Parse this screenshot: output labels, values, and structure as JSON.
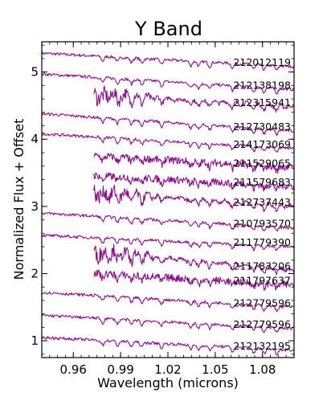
{
  "chart_data": {
    "type": "line",
    "title": "Y Band",
    "xlabel": "Wavelength (microns)",
    "ylabel": "Normalized Flux + Offset",
    "xlim": [
      0.94,
      1.1
    ],
    "ylim": [
      0.75,
      5.45
    ],
    "x_ticks": [
      0.96,
      0.99,
      1.02,
      1.05,
      1.08
    ],
    "x_tick_labels": [
      "0.96",
      "0.99",
      "1.02",
      "1.05",
      "1.08"
    ],
    "y_ticks": [
      1,
      2,
      3,
      4,
      5
    ],
    "y_tick_labels": [
      "1",
      "2",
      "3",
      "4",
      "5"
    ],
    "grid": false,
    "line_color": "#8b108b",
    "series": [
      {
        "name": "212012119",
        "x_start": 0.94,
        "y_start": 5.28,
        "y_end": 5.08,
        "noise": "low"
      },
      {
        "name": "212138198",
        "x_start": 0.94,
        "y_start": 4.97,
        "y_end": 4.74,
        "noise": "low"
      },
      {
        "name": "212315941",
        "x_start": 0.973,
        "y_start": 4.72,
        "y_end": 4.48,
        "noise": "high"
      },
      {
        "name": "212730483",
        "x_start": 0.94,
        "y_start": 4.38,
        "y_end": 4.12,
        "noise": "low"
      },
      {
        "name": "214173069",
        "x_start": 0.94,
        "y_start": 4.08,
        "y_end": 3.86,
        "noise": "low"
      },
      {
        "name": "211529065",
        "x_start": 0.973,
        "y_start": 3.8,
        "y_end": 3.58,
        "noise": "medium"
      },
      {
        "name": "211579683",
        "x_start": 0.973,
        "y_start": 3.5,
        "y_end": 3.3,
        "noise": "medium"
      },
      {
        "name": "212737443",
        "x_start": 0.973,
        "y_start": 3.26,
        "y_end": 3.0,
        "noise": "high"
      },
      {
        "name": "210793570",
        "x_start": 0.94,
        "y_start": 2.9,
        "y_end": 2.68,
        "noise": "low"
      },
      {
        "name": "211779390",
        "x_start": 0.94,
        "y_start": 2.57,
        "y_end": 2.4,
        "noise": "low"
      },
      {
        "name": "211783206",
        "x_start": 0.973,
        "y_start": 2.4,
        "y_end": 2.05,
        "noise": "high"
      },
      {
        "name": "211797637",
        "x_start": 0.973,
        "y_start": 2.05,
        "y_end": 1.83,
        "noise": "medium"
      },
      {
        "name": "212779596",
        "x_start": 0.94,
        "y_start": 1.72,
        "y_end": 1.5,
        "noise": "low"
      },
      {
        "name": "212779596",
        "x_start": 0.94,
        "y_start": 1.38,
        "y_end": 1.18,
        "noise": "low"
      },
      {
        "name": "212132195",
        "x_start": 0.94,
        "y_start": 1.05,
        "y_end": 0.86,
        "noise": "low"
      }
    ]
  }
}
